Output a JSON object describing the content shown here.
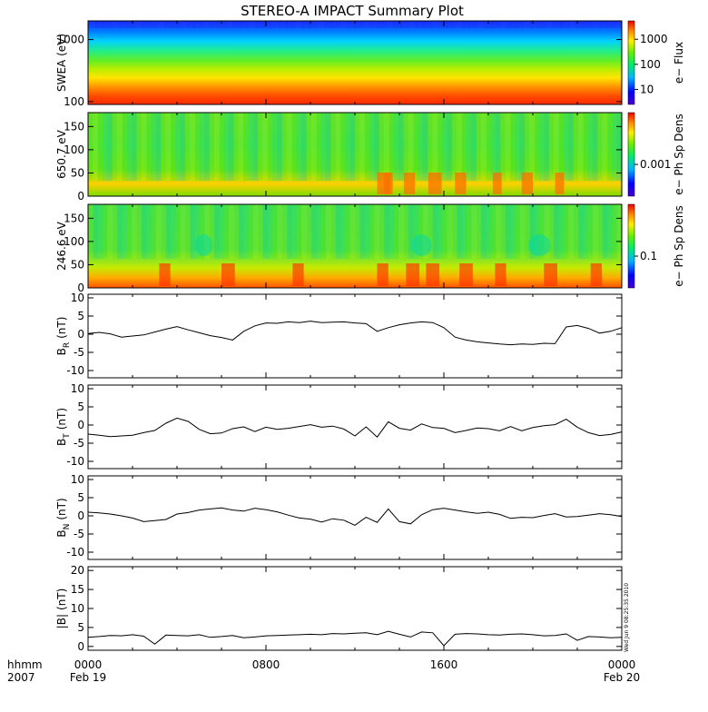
{
  "chart_data": {
    "type": "multi-panel",
    "title": "STEREO-A IMPACT Summary Plot",
    "x_axis": {
      "label_lines": [
        "hhmm",
        "2007"
      ],
      "tick_labels": [
        {
          "top": "0000",
          "bottom": "Feb 19"
        },
        {
          "top": "0800",
          "bottom": ""
        },
        {
          "top": "1600",
          "bottom": ""
        },
        {
          "top": "0000",
          "bottom": "Feb 20"
        }
      ],
      "range_hours": [
        0,
        24
      ]
    },
    "footer_stamp": "Wed Jun 9 08:25:35 2010",
    "panels": [
      {
        "type": "heatmap",
        "ylabel": "SWEA (eV)",
        "y_scale": "log",
        "ylim": [
          90,
          2000
        ],
        "yticks": [
          100,
          1000
        ],
        "ytick_labels": [
          "100",
          "1000"
        ],
        "colorbar_label": "e− Flux",
        "colorbar_scale": "log",
        "colorbar_ticks": [
          "10",
          "100",
          "1000"
        ],
        "description_rows_eV": [
          150,
          300,
          600,
          1200
        ]
      },
      {
        "type": "heatmap",
        "ylabel": "650.7 eV",
        "y_scale": "linear",
        "ylim": [
          0,
          180
        ],
        "yticks": [
          0,
          50,
          100,
          150
        ],
        "ytick_labels": [
          "0",
          "50",
          "100",
          "150"
        ],
        "colorbar_label": "e− Ph Sp Dens",
        "colorbar_ticks": [
          "0.001"
        ]
      },
      {
        "type": "heatmap",
        "ylabel": "246.6 eV",
        "y_scale": "linear",
        "ylim": [
          0,
          180
        ],
        "yticks": [
          0,
          50,
          100,
          150
        ],
        "ytick_labels": [
          "0",
          "50",
          "100",
          "150"
        ],
        "colorbar_label": "e− Ph Sp Dens",
        "colorbar_ticks": [
          "0.1"
        ]
      },
      {
        "type": "line",
        "ylabel_main": "B",
        "ylabel_sub": "R",
        "ylabel_unit": "(nT)",
        "ylim": [
          -12,
          11
        ],
        "yticks": [
          -10,
          -5,
          0,
          5,
          10
        ],
        "ytick_labels": [
          "-10",
          "-5",
          "0",
          "5",
          "10"
        ],
        "x": [
          0,
          0.5,
          1,
          1.5,
          2,
          2.5,
          3,
          3.5,
          4,
          4.5,
          5,
          5.5,
          6,
          6.5,
          7,
          7.5,
          8,
          8.5,
          9,
          9.5,
          10,
          10.5,
          11,
          11.5,
          12,
          12.5,
          13,
          13.5,
          14,
          14.5,
          15,
          15.5,
          16,
          16.5,
          17,
          17.5,
          18,
          18.5,
          19,
          19.5,
          20,
          20.5,
          21,
          21.5,
          22,
          22.5,
          23,
          23.5,
          24
        ],
        "y": [
          0.2,
          0.5,
          0.1,
          -0.8,
          -0.5,
          -0.2,
          0.6,
          1.4,
          2.1,
          1.2,
          0.4,
          -0.4,
          -0.9,
          -1.6,
          0.8,
          2.3,
          3.1,
          3.0,
          3.4,
          3.2,
          3.6,
          3.2,
          3.3,
          3.4,
          3.1,
          2.9,
          0.8,
          1.8,
          2.6,
          3.1,
          3.4,
          3.2,
          1.8,
          -0.8,
          -1.6,
          -2.1,
          -2.4,
          -2.7,
          -2.9,
          -2.7,
          -2.8,
          -2.5,
          -2.6,
          2.0,
          2.4,
          1.6,
          0.3,
          0.8,
          1.8
        ]
      },
      {
        "type": "line",
        "ylabel_main": "B",
        "ylabel_sub": "T",
        "ylabel_unit": "(nT)",
        "ylim": [
          -12,
          11
        ],
        "yticks": [
          -10,
          -5,
          0,
          5,
          10
        ],
        "ytick_labels": [
          "-10",
          "-5",
          "0",
          "5",
          "10"
        ],
        "x": [
          0,
          0.5,
          1,
          1.5,
          2,
          2.5,
          3,
          3.5,
          4,
          4.5,
          5,
          5.5,
          6,
          6.5,
          7,
          7.5,
          8,
          8.5,
          9,
          9.5,
          10,
          10.5,
          11,
          11.5,
          12,
          12.5,
          13,
          13.5,
          14,
          14.5,
          15,
          15.5,
          16,
          16.5,
          17,
          17.5,
          18,
          18.5,
          19,
          19.5,
          20,
          20.5,
          21,
          21.5,
          22,
          22.5,
          23,
          23.5,
          24
        ],
        "y": [
          -2.5,
          -2.8,
          -3.2,
          -3.0,
          -2.8,
          -2.1,
          -1.5,
          0.5,
          1.9,
          1.0,
          -1.2,
          -2.4,
          -2.2,
          -1.0,
          -0.5,
          -1.8,
          -0.6,
          -1.2,
          -0.9,
          -0.4,
          0.1,
          -0.6,
          -0.3,
          -1.1,
          -3.0,
          -0.5,
          -3.3,
          0.9,
          -0.9,
          -1.4,
          0.3,
          -0.7,
          -0.9,
          -2.1,
          -1.5,
          -0.8,
          -1.0,
          -1.6,
          -0.4,
          -1.6,
          -0.7,
          -0.2,
          0.1,
          1.6,
          -0.6,
          -2.1,
          -2.9,
          -2.6,
          -1.9
        ]
      },
      {
        "type": "line",
        "ylabel_main": "B",
        "ylabel_sub": "N",
        "ylabel_unit": "(nT)",
        "ylim": [
          -12,
          11
        ],
        "yticks": [
          -10,
          -5,
          0,
          5,
          10
        ],
        "ytick_labels": [
          "-10",
          "-5",
          "0",
          "5",
          "10"
        ],
        "x": [
          0,
          0.5,
          1,
          1.5,
          2,
          2.5,
          3,
          3.5,
          4,
          4.5,
          5,
          5.5,
          6,
          6.5,
          7,
          7.5,
          8,
          8.5,
          9,
          9.5,
          10,
          10.5,
          11,
          11.5,
          12,
          12.5,
          13,
          13.5,
          14,
          14.5,
          15,
          15.5,
          16,
          16.5,
          17,
          17.5,
          18,
          18.5,
          19,
          19.5,
          20,
          20.5,
          21,
          21.5,
          22,
          22.5,
          23,
          23.5,
          24
        ],
        "y": [
          1.0,
          0.8,
          0.5,
          0.0,
          -0.6,
          -1.6,
          -1.3,
          -1.0,
          0.5,
          0.9,
          1.6,
          1.9,
          2.2,
          1.6,
          1.3,
          2.1,
          1.7,
          1.1,
          0.2,
          -0.6,
          -0.9,
          -1.7,
          -0.8,
          -1.2,
          -2.6,
          -0.4,
          -1.8,
          1.9,
          -1.6,
          -2.2,
          0.3,
          1.7,
          2.1,
          1.6,
          1.1,
          0.7,
          1.0,
          0.4,
          -0.7,
          -0.4,
          -0.5,
          0.1,
          0.6,
          -0.3,
          -0.2,
          0.2,
          0.6,
          0.3,
          -0.2
        ]
      },
      {
        "type": "line",
        "ylabel_main": "|B|",
        "ylabel_sub": "",
        "ylabel_unit": "(nT)",
        "ylim": [
          -1,
          21
        ],
        "yticks": [
          0,
          5,
          10,
          15,
          20
        ],
        "ytick_labels": [
          "0",
          "5",
          "10",
          "15",
          "20"
        ],
        "x": [
          0,
          0.5,
          1,
          1.5,
          2,
          2.5,
          3,
          3.5,
          4,
          4.5,
          5,
          5.5,
          6,
          6.5,
          7,
          7.5,
          8,
          8.5,
          9,
          9.5,
          10,
          10.5,
          11,
          11.5,
          12,
          12.5,
          13,
          13.5,
          14,
          14.5,
          15,
          15.5,
          16,
          16.5,
          17,
          17.5,
          18,
          18.5,
          19,
          19.5,
          20,
          20.5,
          21,
          21.5,
          22,
          22.5,
          23,
          23.5,
          24
        ],
        "y": [
          2.4,
          2.6,
          2.9,
          2.8,
          3.1,
          2.7,
          0.6,
          3.0,
          2.9,
          2.8,
          3.1,
          2.4,
          2.6,
          2.9,
          2.3,
          2.5,
          2.8,
          2.9,
          3.0,
          3.1,
          3.2,
          3.1,
          3.4,
          3.3,
          3.5,
          3.6,
          3.1,
          4.0,
          3.2,
          2.5,
          3.8,
          3.6,
          0.2,
          3.2,
          3.4,
          3.3,
          3.1,
          3.0,
          3.2,
          3.3,
          3.1,
          2.8,
          2.9,
          3.3,
          1.6,
          2.6,
          2.5,
          2.3,
          2.4
        ]
      }
    ]
  }
}
